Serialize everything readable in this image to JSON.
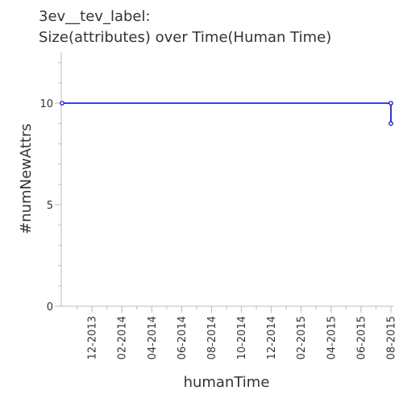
{
  "chart_data": {
    "type": "line",
    "title_line1": "3ev__tev_label:",
    "title_line2": "Size(attributes) over Time(Human Time)",
    "xlabel": "humanTime",
    "ylabel": "#numNewAttrs",
    "x_tick_labels": [
      "12-2013",
      "02-2014",
      "04-2014",
      "06-2014",
      "08-2014",
      "10-2014",
      "12-2014",
      "02-2015",
      "04-2015",
      "06-2015",
      "08-2015"
    ],
    "y_tick_labels": [
      "0",
      "5",
      "10"
    ],
    "ylim": [
      0,
      12.5
    ],
    "series": [
      {
        "color": "#0000cc",
        "points": [
          {
            "x": "2013-10-01",
            "y": 10
          },
          {
            "x": "2015-08-01",
            "y": 10
          },
          {
            "x": "2015-08-01",
            "y": 9
          }
        ]
      }
    ]
  }
}
